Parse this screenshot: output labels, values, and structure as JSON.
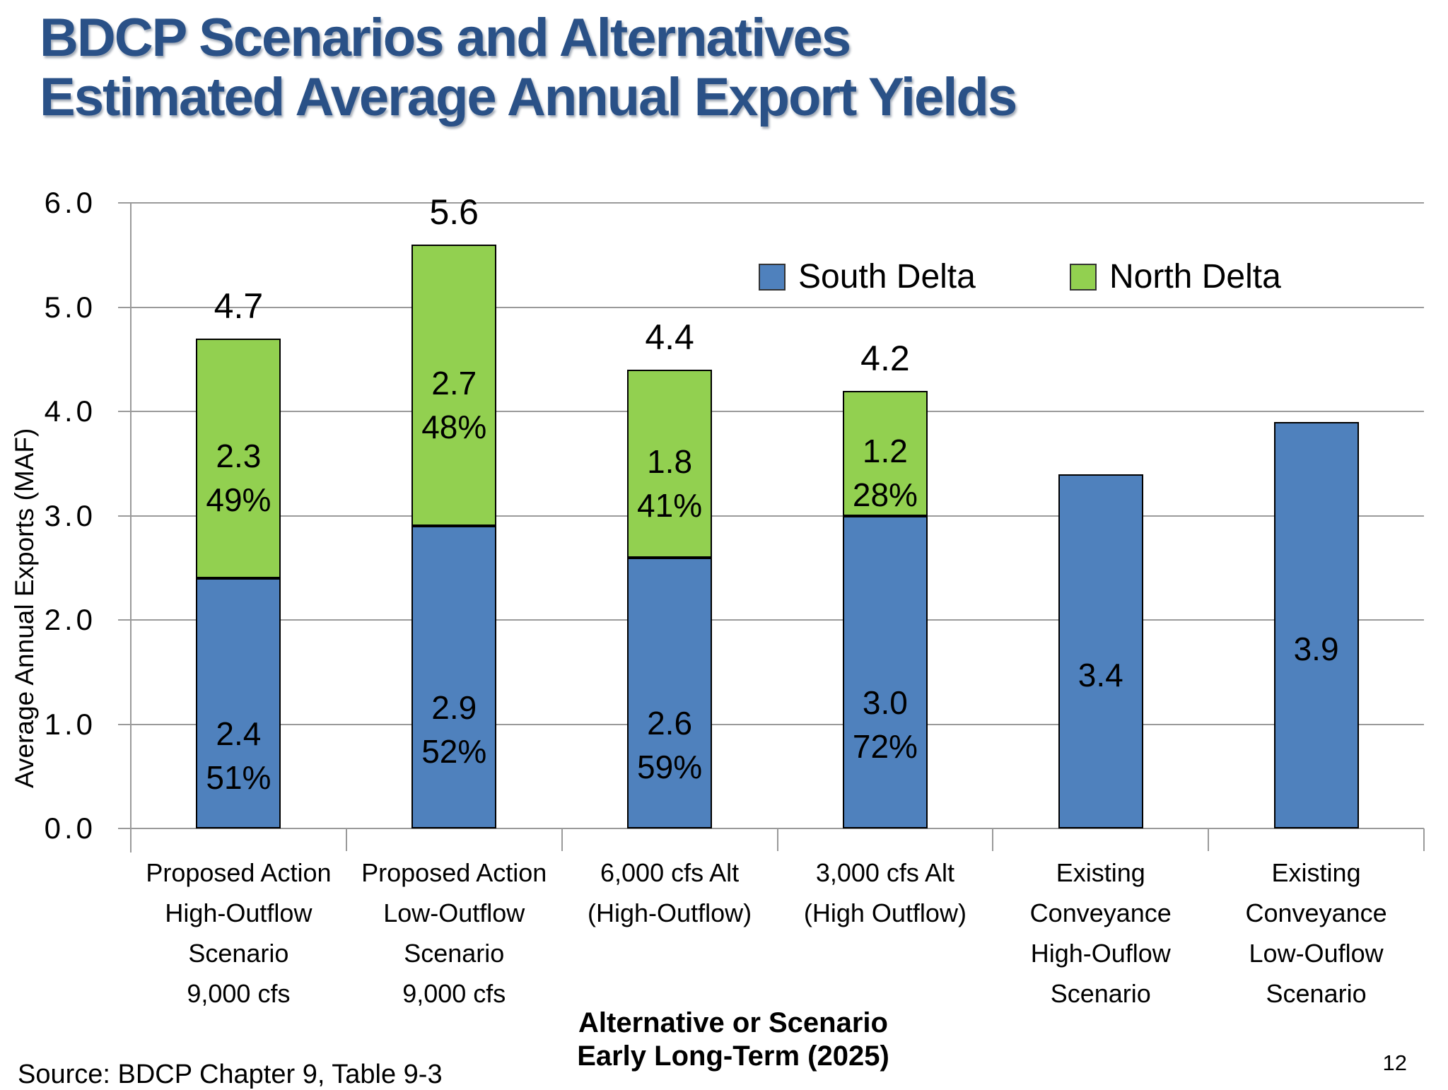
{
  "header": {
    "title_line1": "BDCP Scenarios and Alternatives",
    "title_line2": "Estimated Average Annual Export Yields"
  },
  "chart_data": {
    "type": "bar",
    "stacked": true,
    "title": "BDCP Scenarios and Alternatives Estimated Average Annual Export Yields",
    "ylabel": "Average Annual Exports (MAF)",
    "xlabel_line1": "Alternative or Scenario",
    "xlabel_line2": "Early Long-Term (2025)",
    "ylim": [
      0,
      6
    ],
    "yticks": [
      "0.0",
      "1.0",
      "2.0",
      "3.0",
      "4.0",
      "5.0",
      "6.0"
    ],
    "grid": true,
    "legend_position": "top-right",
    "categories": [
      [
        "Proposed Action",
        "High-Outflow",
        "Scenario",
        "9,000 cfs"
      ],
      [
        "Proposed Action",
        "Low-Outflow",
        "Scenario",
        "9,000 cfs"
      ],
      [
        "6,000 cfs Alt",
        "(High-Outflow)"
      ],
      [
        "3,000 cfs Alt",
        "(High Outflow)"
      ],
      [
        "Existing",
        "Conveyance",
        "High-Ouflow",
        "Scenario"
      ],
      [
        "Existing",
        "Conveyance",
        "Low-Ouflow",
        "Scenario"
      ]
    ],
    "series": [
      {
        "name": "South Delta",
        "color": "#4F81BD",
        "values": [
          2.4,
          2.9,
          2.6,
          3.0,
          3.4,
          3.9
        ],
        "labels": [
          "2.4",
          "2.9",
          "2.6",
          "3.0",
          "3.4",
          "3.9"
        ],
        "pct": [
          "51%",
          "52%",
          "59%",
          "72%",
          "",
          ""
        ]
      },
      {
        "name": "North Delta",
        "color": "#92D050",
        "values": [
          2.3,
          2.7,
          1.8,
          1.2,
          0,
          0
        ],
        "labels": [
          "2.3",
          "2.7",
          "1.8",
          "1.2",
          "",
          ""
        ],
        "pct": [
          "49%",
          "48%",
          "41%",
          "28%",
          "",
          ""
        ]
      }
    ],
    "totals": [
      "4.7",
      "5.6",
      "4.4",
      "4.2",
      "",
      ""
    ]
  },
  "footer": {
    "source": "Source: BDCP Chapter 9, Table 9-3",
    "page_number": "12"
  }
}
